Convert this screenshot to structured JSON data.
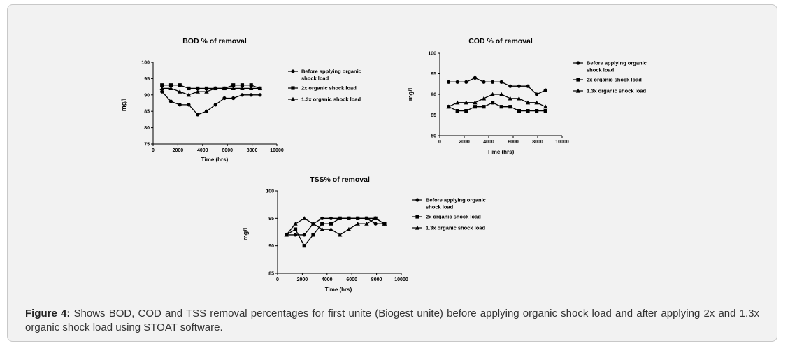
{
  "caption": {
    "label": "Figure 4:",
    "text": "Shows BOD, COD and TSS removal percentages for first unite (Biogest unite) before applying organic shock load and after applying 2x and 1.3x organic shock load using STOAT software."
  },
  "chart_data": [
    {
      "type": "line",
      "title": "BOD % of removal",
      "xlabel": "Time (hrs)",
      "ylabel": "mg/l",
      "xlim": [
        0,
        10000
      ],
      "ylim": [
        75,
        100
      ],
      "xticks": [
        0,
        2000,
        4000,
        6000,
        8000,
        10000
      ],
      "yticks": [
        75,
        80,
        85,
        90,
        95,
        100
      ],
      "x": [
        720,
        1440,
        2160,
        2880,
        3600,
        4320,
        5040,
        5760,
        6480,
        7200,
        7920,
        8640
      ],
      "series": [
        {
          "name": "Before applying organic shock load",
          "marker": "circle",
          "values": [
            91,
            88,
            87,
            87,
            84,
            85,
            87,
            89,
            89,
            90,
            90,
            90
          ]
        },
        {
          "name": "2x organic shock load",
          "marker": "square",
          "values": [
            93,
            93,
            93,
            92,
            92,
            92,
            92,
            92,
            93,
            93,
            93,
            92
          ]
        },
        {
          "name": "1.3x organic shock load",
          "marker": "triangle",
          "values": [
            92,
            92,
            91,
            90,
            91,
            91,
            92,
            92,
            92,
            92,
            92,
            92
          ]
        }
      ],
      "legend": [
        [
          "Before applying organic",
          "shock load"
        ],
        [
          "2x organic shock load"
        ],
        [
          "1.3x organic shock load"
        ]
      ]
    },
    {
      "type": "line",
      "title": "COD % of removal",
      "xlabel": "Time (hrs)",
      "ylabel": "mg/l",
      "xlim": [
        0,
        10000
      ],
      "ylim": [
        80,
        100
      ],
      "xticks": [
        0,
        2000,
        4000,
        6000,
        8000,
        10000
      ],
      "yticks": [
        80,
        85,
        90,
        95,
        100
      ],
      "x": [
        720,
        1440,
        2160,
        2880,
        3600,
        4320,
        5040,
        5760,
        6480,
        7200,
        7920,
        8640
      ],
      "series": [
        {
          "name": "Before applying organic shock load",
          "marker": "circle",
          "values": [
            93,
            93,
            93,
            94,
            93,
            93,
            93,
            92,
            92,
            92,
            90,
            91
          ]
        },
        {
          "name": "2x organic shock load",
          "marker": "square",
          "values": [
            87,
            86,
            86,
            87,
            87,
            88,
            87,
            87,
            86,
            86,
            86,
            86
          ]
        },
        {
          "name": "1.3x organic shock load",
          "marker": "triangle",
          "values": [
            87,
            88,
            88,
            88,
            89,
            90,
            90,
            89,
            89,
            88,
            88,
            87
          ]
        }
      ],
      "legend": [
        [
          "Before applying organic",
          "shock load"
        ],
        [
          "2x organic shock load"
        ],
        [
          "1.3x organic shock load"
        ]
      ]
    },
    {
      "type": "line",
      "title": "TSS% of removal",
      "xlabel": "Time (hrs)",
      "ylabel": "mg/l",
      "xlim": [
        0,
        10000
      ],
      "ylim": [
        85,
        100
      ],
      "xticks": [
        0,
        2000,
        4000,
        6000,
        8000,
        10000
      ],
      "yticks": [
        85,
        90,
        95,
        100
      ],
      "ytick_labels": [
        "85",
        "90",
        "95",
        "100"
      ],
      "yaxis_reversed_labels": true,
      "x": [
        720,
        1440,
        2160,
        2880,
        3600,
        4320,
        5040,
        5760,
        6480,
        7200,
        7920,
        8640
      ],
      "series": [
        {
          "name": "Before applying organic shock load",
          "marker": "circle",
          "values": [
            92,
            92,
            92,
            94,
            95,
            95,
            95,
            95,
            95,
            95,
            94,
            94
          ]
        },
        {
          "name": "2x organic shock load",
          "marker": "square",
          "values": [
            92,
            93,
            90,
            92,
            94,
            94,
            95,
            95,
            95,
            95,
            95,
            94
          ]
        },
        {
          "name": "1.3x organic shock load",
          "marker": "triangle",
          "values": [
            92,
            94,
            95,
            94,
            93,
            93,
            92,
            93,
            94,
            94,
            95,
            94
          ]
        }
      ],
      "legend": [
        [
          "Before applying organic",
          "shock load"
        ],
        [
          "2x organic shock load"
        ],
        [
          "1.3x organic shock load"
        ]
      ]
    }
  ]
}
